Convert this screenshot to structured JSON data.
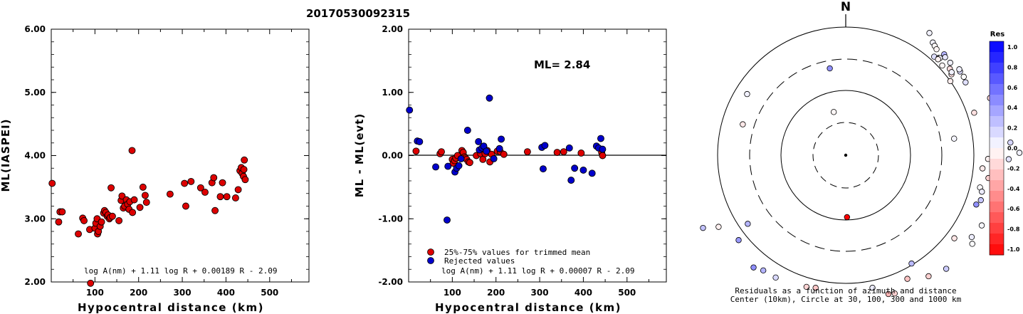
{
  "page_title": "20170530092315",
  "chart_data": [
    {
      "type": "scatter",
      "id": "ml-vs-distance",
      "xlabel": "Hypocentral distance (km)",
      "ylabel": "ML(IASPEI)",
      "xlim": [
        0,
        590
      ],
      "ylim": [
        2.0,
        6.0
      ],
      "xticks": [
        "100",
        "200",
        "300",
        "400",
        "500"
      ],
      "yticks": [
        "2.00",
        "3.00",
        "4.00",
        "5.00",
        "6.00"
      ],
      "formula": "log A(nm) + 1.11 log R + 0.00189 R - 2.09",
      "point_color": "#dd0000",
      "points": [
        [
          2,
          3.56
        ],
        [
          17,
          2.95
        ],
        [
          20,
          3.11
        ],
        [
          25,
          3.11
        ],
        [
          62,
          2.76
        ],
        [
          72,
          3.01
        ],
        [
          75,
          2.97
        ],
        [
          88,
          2.83
        ],
        [
          90,
          1.98
        ],
        [
          100,
          2.85
        ],
        [
          102,
          2.93
        ],
        [
          105,
          3.0
        ],
        [
          106,
          2.76
        ],
        [
          108,
          2.8
        ],
        [
          112,
          2.88
        ],
        [
          115,
          2.95
        ],
        [
          120,
          3.09
        ],
        [
          122,
          3.13
        ],
        [
          125,
          3.1
        ],
        [
          128,
          3.04
        ],
        [
          130,
          3.06
        ],
        [
          133,
          3.0
        ],
        [
          135,
          3.02
        ],
        [
          137,
          3.49
        ],
        [
          140,
          3.04
        ],
        [
          155,
          2.97
        ],
        [
          160,
          3.29
        ],
        [
          162,
          3.36
        ],
        [
          165,
          3.17
        ],
        [
          168,
          3.2
        ],
        [
          172,
          3.3
        ],
        [
          175,
          3.23
        ],
        [
          178,
          3.15
        ],
        [
          180,
          3.27
        ],
        [
          185,
          4.08
        ],
        [
          186,
          3.1
        ],
        [
          190,
          3.3
        ],
        [
          203,
          3.18
        ],
        [
          210,
          3.5
        ],
        [
          215,
          3.37
        ],
        [
          218,
          3.26
        ],
        [
          272,
          3.39
        ],
        [
          305,
          3.56
        ],
        [
          308,
          3.2
        ],
        [
          320,
          3.59
        ],
        [
          342,
          3.49
        ],
        [
          352,
          3.42
        ],
        [
          368,
          3.57
        ],
        [
          372,
          3.65
        ],
        [
          375,
          3.13
        ],
        [
          387,
          3.35
        ],
        [
          392,
          3.57
        ],
        [
          402,
          3.35
        ],
        [
          422,
          3.33
        ],
        [
          428,
          3.46
        ],
        [
          432,
          3.76
        ],
        [
          435,
          3.81
        ],
        [
          437,
          3.72
        ],
        [
          440,
          3.67
        ],
        [
          441,
          3.78
        ],
        [
          442,
          3.93
        ],
        [
          444,
          3.62
        ]
      ]
    },
    {
      "type": "scatter",
      "id": "residual-vs-distance",
      "xlabel": "Hypocentral distance (km)",
      "ylabel": "ML - ML(evt)",
      "xlim": [
        0,
        590
      ],
      "ylim": [
        -2.0,
        2.0
      ],
      "xticks": [
        "100",
        "200",
        "300",
        "400",
        "500"
      ],
      "yticks": [
        "-2.00",
        "-1.00",
        "0.00",
        "1.00",
        "2.00"
      ],
      "annotation": "ML= 2.84",
      "formula": "log A(nm) + 1.11 log R + 0.00007 R - 2.09",
      "legend": [
        {
          "label": "25%-75% values for trimmed mean",
          "color": "#dd0000"
        },
        {
          "label": "Rejected values",
          "color": "#0000cc"
        }
      ],
      "legend_position": "bottom-left",
      "series": [
        {
          "name": "25%-75% values for trimmed mean",
          "color": "#dd0000",
          "points": [
            [
              17,
              0.07
            ],
            [
              72,
              0.03
            ],
            [
              75,
              0.06
            ],
            [
              100,
              -0.06
            ],
            [
              102,
              -0.12
            ],
            [
              105,
              -0.08
            ],
            [
              108,
              -0.04
            ],
            [
              112,
              0.0
            ],
            [
              122,
              0.08
            ],
            [
              125,
              0.05
            ],
            [
              128,
              -0.02
            ],
            [
              130,
              -0.04
            ],
            [
              133,
              -0.06
            ],
            [
              137,
              -0.1
            ],
            [
              140,
              -0.11
            ],
            [
              155,
              0.0
            ],
            [
              165,
              0.03
            ],
            [
              170,
              -0.06
            ],
            [
              175,
              0.03
            ],
            [
              180,
              0.08
            ],
            [
              186,
              -0.1
            ],
            [
              190,
              0.02
            ],
            [
              203,
              0.07
            ],
            [
              210,
              0.06
            ],
            [
              218,
              0.02
            ],
            [
              272,
              0.06
            ],
            [
              340,
              0.05
            ],
            [
              355,
              0.06
            ],
            [
              395,
              0.04
            ],
            [
              442,
              0.05
            ],
            [
              444,
              0.0
            ]
          ]
        },
        {
          "name": "Rejected values",
          "color": "#0000cc",
          "points": [
            [
              2,
              0.72
            ],
            [
              20,
              0.23
            ],
            [
              25,
              0.22
            ],
            [
              62,
              -0.18
            ],
            [
              88,
              -1.02
            ],
            [
              90,
              -0.17
            ],
            [
              106,
              -0.26
            ],
            [
              110,
              -0.2
            ],
            [
              115,
              -0.16
            ],
            [
              120,
              -0.05
            ],
            [
              135,
              0.4
            ],
            [
              160,
              0.22
            ],
            [
              162,
              0.09
            ],
            [
              168,
              0.12
            ],
            [
              172,
              0.15
            ],
            [
              178,
              0.07
            ],
            [
              185,
              0.91
            ],
            [
              195,
              -0.05
            ],
            [
              208,
              0.11
            ],
            [
              212,
              0.26
            ],
            [
              305,
              0.13
            ],
            [
              312,
              0.16
            ],
            [
              308,
              -0.21
            ],
            [
              368,
              0.12
            ],
            [
              372,
              -0.39
            ],
            [
              380,
              -0.2
            ],
            [
              400,
              -0.23
            ],
            [
              420,
              -0.28
            ],
            [
              430,
              0.15
            ],
            [
              435,
              0.12
            ],
            [
              440,
              0.27
            ],
            [
              444,
              0.1
            ]
          ]
        }
      ]
    },
    {
      "type": "polar",
      "id": "azimuth-residuals",
      "north_label": "N",
      "caption_line1": "Residuals as a function of azimuth and distance",
      "caption_line2": "Center (10km), Circle at 30, 100, 300 and 1000 km",
      "rings_km": [
        30,
        100,
        300,
        1000
      ],
      "colorbar_title": "Res",
      "colorbar_labels": [
        "1.0",
        "0.8",
        "0.6",
        "0.4",
        "0.2",
        "0.0",
        "-0.2",
        "-0.4",
        "-0.6",
        "-0.8",
        "-1.0"
      ],
      "points": [
        [
          -26.9,
          301,
          0.04
        ],
        [
          1.9,
          282,
          0.47
        ],
        [
          -16.7,
          237,
          0.9
        ],
        [
          -15.5,
          63,
          -0.03
        ],
        [
          -10.4,
          124,
          0.43
        ],
        [
          17.2,
          299,
          0.07
        ],
        [
          16.9,
          286,
          -0.11
        ],
        [
          21.0,
          285,
          -0.13
        ],
        [
          34.4,
          208,
          0.05
        ],
        [
          37.7,
          200,
          0.05
        ],
        [
          39.1,
          198,
          -0.02
        ],
        [
          40.6,
          196,
          -0.04
        ],
        [
          41.9,
          186,
          0.13
        ],
        [
          43.7,
          189,
          0.05
        ],
        [
          44.1,
          190,
          0.04
        ],
        [
          43.9,
          187,
          -0.05
        ],
        [
          47.1,
          185,
          -0.03
        ],
        [
          44.3,
          198,
          0.3
        ],
        [
          45.4,
          196,
          0.09
        ],
        [
          48.5,
          196,
          0.06
        ],
        [
          52.6,
          187,
          -0.11
        ],
        [
          50.3,
          190,
          -0.13
        ],
        [
          51.9,
          189,
          0.05
        ],
        [
          53.8,
          199,
          0.14
        ],
        [
          52.9,
          200,
          0.06
        ],
        [
          56.4,
          199,
          0.0
        ],
        [
          58.7,
          197,
          0.12
        ],
        [
          54.7,
          180,
          -0.07
        ],
        [
          68.4,
          218,
          -0.17
        ],
        [
          71.7,
          190,
          -0.12
        ],
        [
          74.9,
          215,
          -0.16
        ],
        [
          81.3,
          154,
          0.04
        ],
        [
          85.6,
          232,
          0.16
        ],
        [
          86.3,
          255,
          0.07
        ],
        [
          89.2,
          244,
          0.05
        ],
        [
          91.4,
          229,
          0.11
        ],
        [
          91.5,
          200,
          -0.06
        ],
        [
          95.5,
          193,
          -0.08
        ],
        [
          99.1,
          203,
          -0.18
        ],
        [
          103.5,
          194,
          0.02
        ],
        [
          105.0,
          198,
          0.08
        ],
        [
          108.4,
          200,
          0.22
        ],
        [
          110.7,
          196,
          0.43
        ],
        [
          117.3,
          215,
          0.03
        ],
        [
          123.0,
          211,
          0.07
        ],
        [
          125.0,
          217,
          0.01
        ],
        [
          127.4,
          192,
          -0.1
        ],
        [
          138.5,
          213,
          0.2
        ],
        [
          145.6,
          206,
          -0.18
        ],
        [
          148.7,
          178,
          0.27
        ],
        [
          153.5,
          194,
          -0.23
        ],
        [
          160.5,
          206,
          -0.18
        ],
        [
          162.9,
          204,
          -0.29
        ],
        [
          168.6,
          190,
          0.07
        ],
        [
          178.8,
          87,
          -1.05
        ],
        [
          192.8,
          191,
          -0.22
        ],
        [
          196.6,
          193,
          -0.17
        ],
        [
          209.8,
          198,
          0.15
        ],
        [
          215.6,
          199,
          0.3
        ],
        [
          219.4,
          204,
          0.44
        ],
        [
          231.6,
          192,
          0.4
        ],
        [
          235.0,
          168,
          0.29
        ],
        [
          240.6,
          205,
          -0.06
        ],
        [
          243.0,
          225,
          0.24
        ],
        [
          286.7,
          151,
          -0.09
        ],
        [
          301.8,
          163,
          0.05
        ]
      ]
    }
  ]
}
